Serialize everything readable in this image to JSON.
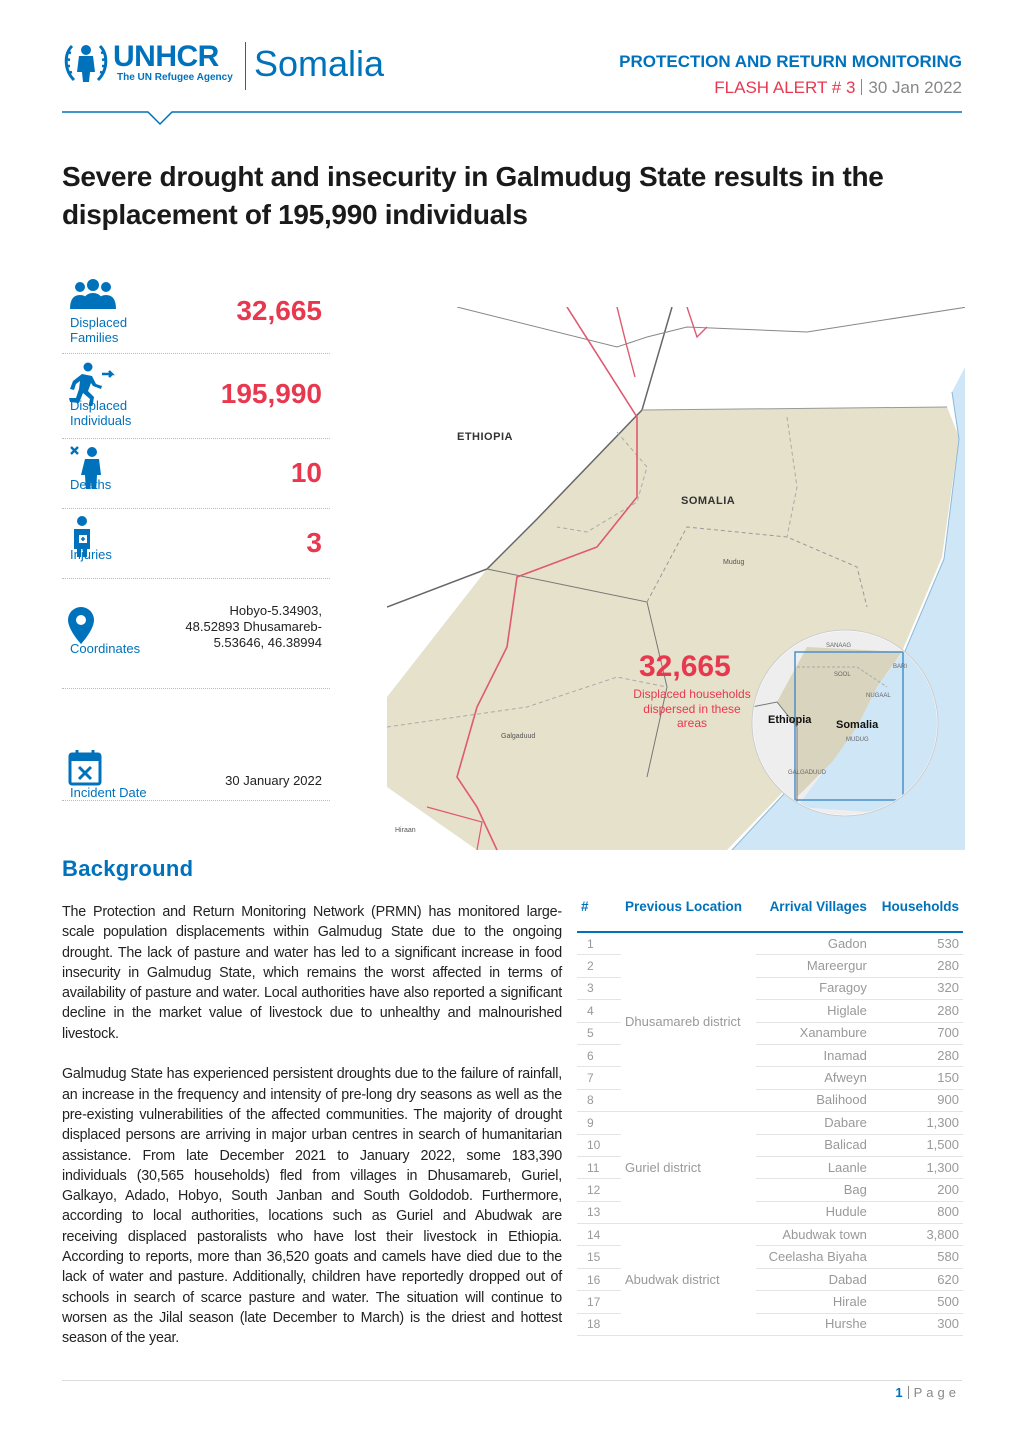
{
  "header": {
    "org": "UNHCR",
    "tagline": "The UN Refugee Agency",
    "country": "Somalia",
    "series": "PROTECTION AND RETURN MONITORING",
    "alert": "FLASH ALERT # 3",
    "date": "30 Jan 2022"
  },
  "title": "Severe drought and insecurity in Galmudug State results in the displacement of 195,990 individuals",
  "stats": [
    {
      "label": "Displaced Families",
      "value": "32,665"
    },
    {
      "label": "Displaced Individuals",
      "value": "195,990"
    },
    {
      "label": "Deaths",
      "value": "10"
    },
    {
      "label": "Injuries",
      "value": "3"
    },
    {
      "label": "Coordinates",
      "value": "Hobyo-5.34903, 48.52893 Dhusamareb-5.53646, 46.38994"
    },
    {
      "label": "Incident Date",
      "value": "30 January 2022"
    }
  ],
  "map": {
    "labels": [
      "ETHIOPIA",
      "SOMALIA",
      "Mudug",
      "Galgaduud",
      "Hiraan"
    ],
    "callout": {
      "value": "32,665",
      "text": "Displaced households dispersed in these areas"
    },
    "inset_labels": [
      "Ethiopia",
      "Somalia",
      "SANAAG",
      "BARI",
      "SOOL",
      "NUGAAL",
      "MUDUG",
      "GALGADUUD"
    ]
  },
  "background": {
    "heading": "Background",
    "paragraphs": [
      "The Protection and Return Monitoring Network (PRMN) has monitored large-scale population displacements within Galmudug State due to the ongoing drought. The lack of pasture and water has led to a significant increase in food insecurity in Galmudug State, which remains the worst affected in terms of availability of pasture and water. Local authorities have also reported a significant decline in the market value of livestock due to unhealthy and malnourished livestock.",
      "Galmudug State has experienced persistent droughts due to the failure of rainfall, an increase in the frequency and intensity of pre-long dry seasons as well as the pre-existing vulnerabilities of the affected communities. The majority of drought displaced persons are arriving in major urban centres in search of humanitarian assistance. From late December 2021 to January 2022, some 183,390 individuals (30,565 households) fled from villages in Dhusamareb, Guriel, Galkayo, Adado, Hobyo, South Janban and South Goldodob. Furthermore, according to local authorities, locations such as Guriel and Abudwak are receiving displaced pastoralists who have lost their livestock in Ethiopia. According to reports, more than 36,520 goats and camels have died due to the lack of water and pasture. Additionally, children have reportedly dropped out of schools in search of scarce pasture and water. The situation will continue to worsen as the Jilal season (late December to March) is the driest and hottest season of the year."
    ]
  },
  "table": {
    "columns": [
      "#",
      "Previous Location",
      "Arrival Villages",
      "Households"
    ],
    "groups": [
      {
        "location": "Dhusamareb district",
        "rows": [
          [
            "1",
            "Gadon",
            "530"
          ],
          [
            "2",
            "Mareergur",
            "280"
          ],
          [
            "3",
            "Faragoy",
            "320"
          ],
          [
            "4",
            "Higlale",
            "280"
          ],
          [
            "5",
            "Xanambure",
            "700"
          ],
          [
            "6",
            "Inamad",
            "280"
          ],
          [
            "7",
            "Afweyn",
            "150"
          ],
          [
            "8",
            "Balihood",
            "900"
          ]
        ]
      },
      {
        "location": "Guriel district",
        "rows": [
          [
            "9",
            "Dabare",
            "1,300"
          ],
          [
            "10",
            "Balicad",
            "1,500"
          ],
          [
            "11",
            "Laanle",
            "1,300"
          ],
          [
            "12",
            "Bag",
            "200"
          ],
          [
            "13",
            "Hudule",
            "800"
          ]
        ]
      },
      {
        "location": "Abudwak district",
        "rows": [
          [
            "14",
            "Abudwak town",
            "3,800"
          ],
          [
            "15",
            "Ceelasha Biyaha",
            "580"
          ],
          [
            "16",
            "Dabad",
            "620"
          ],
          [
            "17",
            "Hirale",
            "500"
          ],
          [
            "18",
            "Hurshe",
            "300"
          ]
        ]
      }
    ]
  },
  "footer": {
    "page": "1",
    "label": "Page"
  }
}
